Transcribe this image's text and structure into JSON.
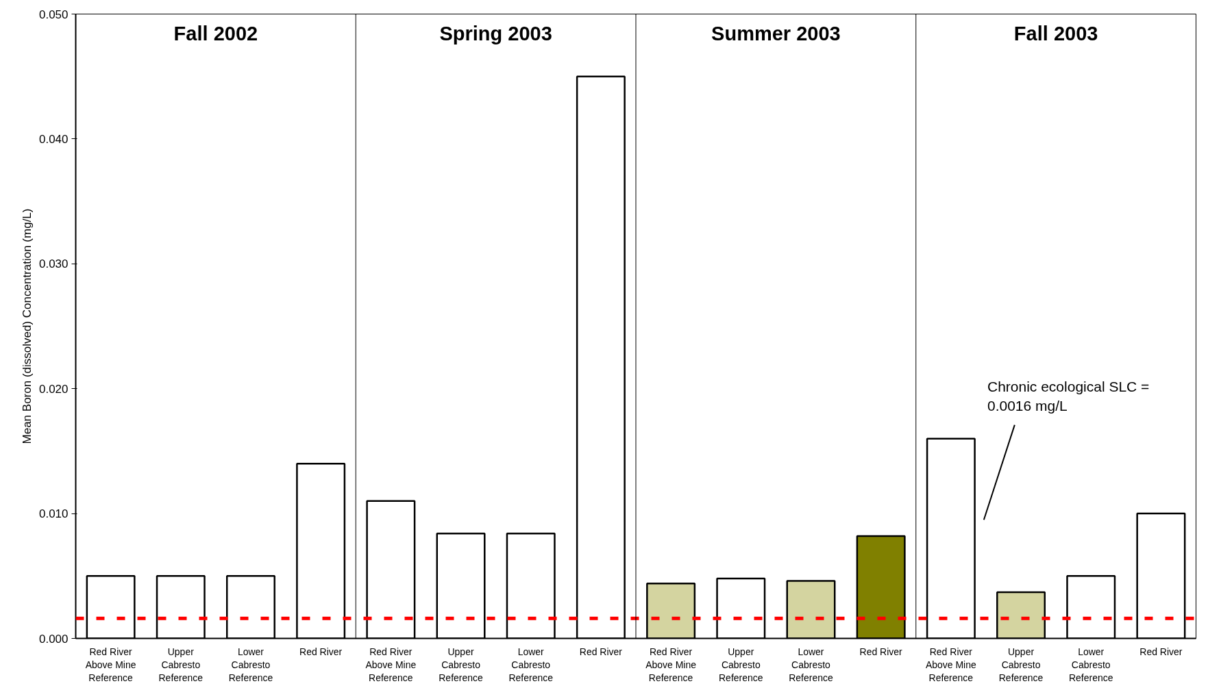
{
  "chart_data": {
    "type": "bar",
    "ylabel": "Mean Boron (dissolved) Concentration (mg/L)",
    "categories": [
      "Red River\nAbove Mine\nReference",
      "Upper\nCabresto\nReference",
      "Lower\nCabresto\nReference",
      "Red River",
      "Red River\nAbove Mine\nReference",
      "Upper\nCabresto\nReference",
      "Lower\nCabresto\nReference",
      "Red River",
      "Red River\nAbove Mine\nReference",
      "Upper\nCabresto\nReference",
      "Lower\nCabresto\nReference",
      "Red River",
      "Red River\nAbove Mine\nReference",
      "Upper\nCabresto\nReference",
      "Lower\nCabresto\nReference",
      "Red River"
    ],
    "values": [
      0.005,
      0.005,
      0.005,
      0.014,
      0.011,
      0.0084,
      0.0084,
      0.045,
      0.0044,
      0.0048,
      0.0046,
      0.0082,
      0.016,
      0.0037,
      0.005,
      0.01
    ],
    "colors": [
      "#ffffff",
      "#ffffff",
      "#ffffff",
      "#ffffff",
      "#ffffff",
      "#ffffff",
      "#ffffff",
      "#ffffff",
      "#d4d4a0",
      "#ffffff",
      "#d4d4a0",
      "#808000",
      "#ffffff",
      "#d4d4a0",
      "#ffffff",
      "#ffffff"
    ],
    "ylim": [
      0,
      0.05
    ],
    "yticks": [
      {
        "value": 0,
        "label": "0.000"
      },
      {
        "value": 0.01,
        "label": "0.010"
      },
      {
        "value": 0.02,
        "label": "0.020"
      },
      {
        "value": 0.03,
        "label": "0.030"
      },
      {
        "value": 0.04,
        "label": "0.040"
      },
      {
        "value": 0.05,
        "label": "0.050"
      }
    ],
    "ref_lines": [
      {
        "axis": "y",
        "value": 0.0016,
        "color": "#ff0000",
        "line_style": "dashed"
      }
    ],
    "annotations": [
      "Fall 2002",
      "Spring 2003",
      "Summer 2003",
      "Fall 2003",
      "Chronic ecological SLC =\n0.0016 mg/L"
    ]
  }
}
